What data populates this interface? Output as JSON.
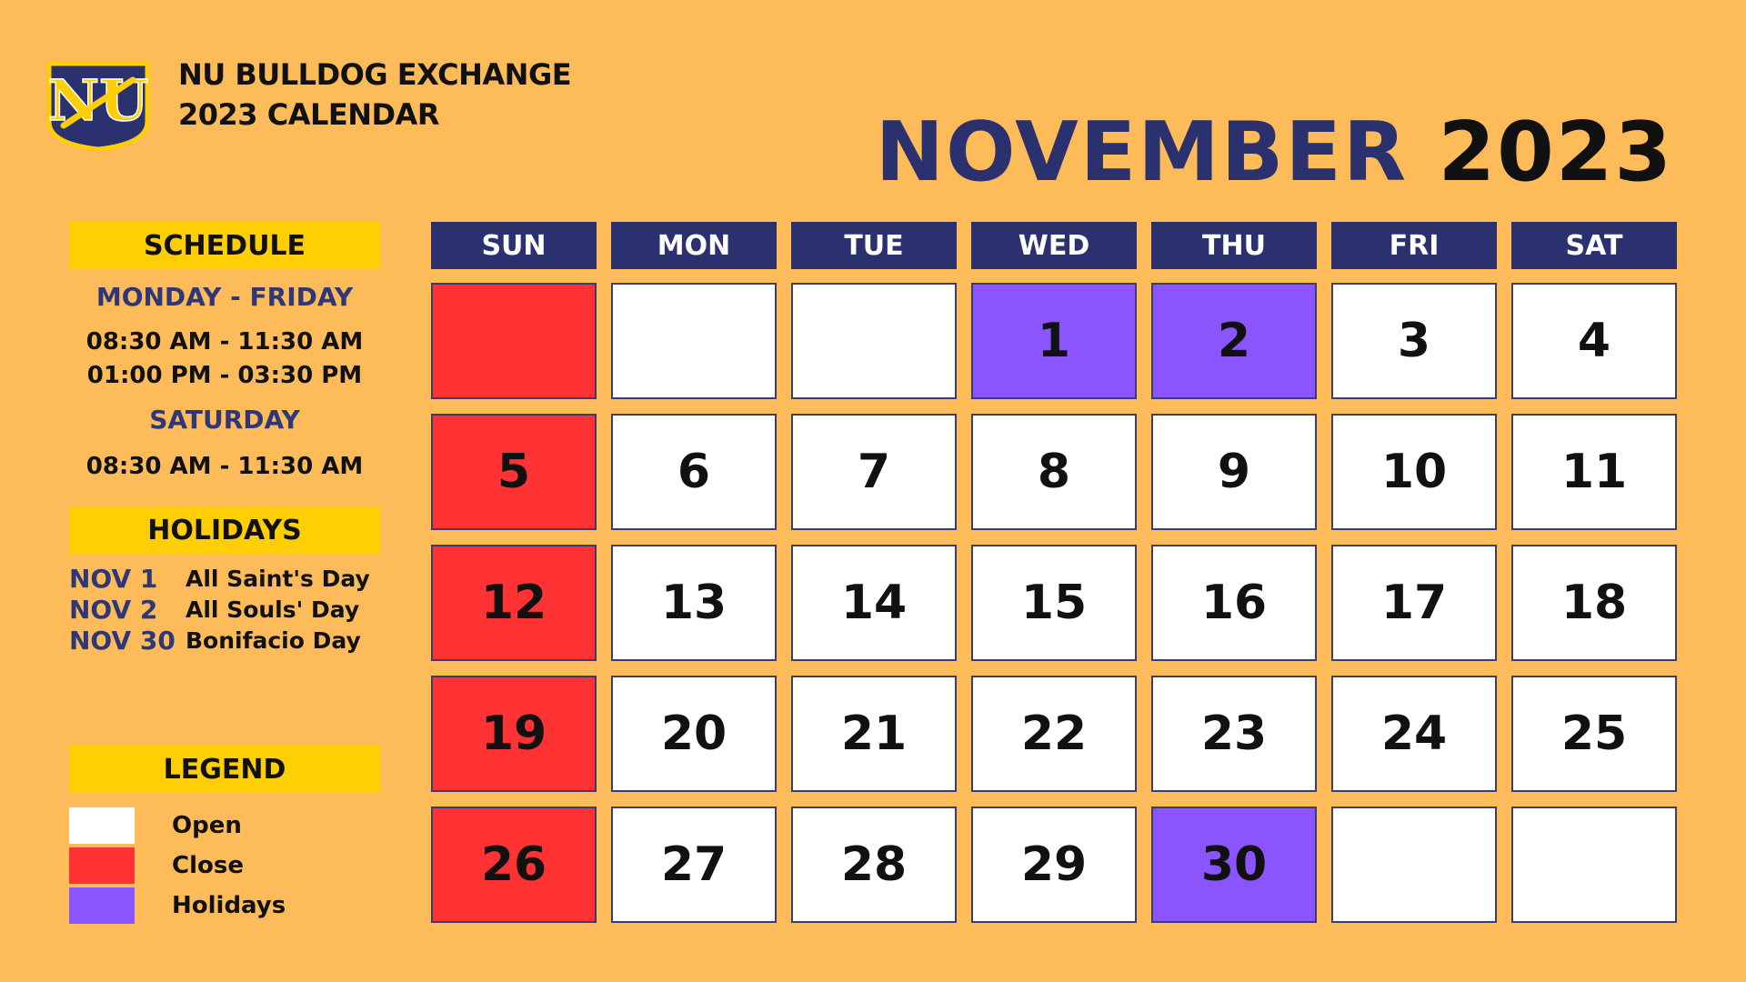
{
  "header": {
    "org_line1": "NU BULLDOG EXCHANGE",
    "org_line2": "2023 CALENDAR",
    "month": "NOVEMBER",
    "year": "2023"
  },
  "logo": {
    "icon": "nu-bulldog-logo-icon",
    "text": "NU"
  },
  "schedule": {
    "title": "SCHEDULE",
    "weekday_label": "MONDAY - FRIDAY",
    "weekday_times": [
      "08:30 AM - 11:30 AM",
      "01:00 PM - 03:30 PM"
    ],
    "saturday_label": "SATURDAY",
    "saturday_times": [
      "08:30 AM - 11:30 AM"
    ]
  },
  "holidays": {
    "title": "HOLIDAYS",
    "items": [
      {
        "date": "NOV 1",
        "name": "All Saint's Day"
      },
      {
        "date": "NOV 2",
        "name": "All Souls' Day"
      },
      {
        "date": "NOV 30",
        "name": "Bonifacio Day"
      }
    ]
  },
  "legend": {
    "title": "LEGEND",
    "items": [
      {
        "label": "Open",
        "color": "#FFFFFF"
      },
      {
        "label": "Close",
        "color": "#FF3334"
      },
      {
        "label": "Holidays",
        "color": "#8A55FF"
      }
    ]
  },
  "colors": {
    "background": "#FDBB59",
    "banner": "#FFCE05",
    "navy": "#2B316E",
    "open": "#FFFFFF",
    "close": "#FF3334",
    "holiday": "#8A55FF"
  },
  "calendar": {
    "weekdays": [
      "SUN",
      "MON",
      "TUE",
      "WED",
      "THU",
      "FRI",
      "SAT"
    ],
    "weeks": [
      [
        {
          "day": "",
          "status": "close"
        },
        {
          "day": "",
          "status": "open"
        },
        {
          "day": "",
          "status": "open"
        },
        {
          "day": "1",
          "status": "holiday"
        },
        {
          "day": "2",
          "status": "holiday"
        },
        {
          "day": "3",
          "status": "open"
        },
        {
          "day": "4",
          "status": "open"
        }
      ],
      [
        {
          "day": "5",
          "status": "close"
        },
        {
          "day": "6",
          "status": "open"
        },
        {
          "day": "7",
          "status": "open"
        },
        {
          "day": "8",
          "status": "open"
        },
        {
          "day": "9",
          "status": "open"
        },
        {
          "day": "10",
          "status": "open"
        },
        {
          "day": "11",
          "status": "open"
        }
      ],
      [
        {
          "day": "12",
          "status": "close"
        },
        {
          "day": "13",
          "status": "open"
        },
        {
          "day": "14",
          "status": "open"
        },
        {
          "day": "15",
          "status": "open"
        },
        {
          "day": "16",
          "status": "open"
        },
        {
          "day": "17",
          "status": "open"
        },
        {
          "day": "18",
          "status": "open"
        }
      ],
      [
        {
          "day": "19",
          "status": "close"
        },
        {
          "day": "20",
          "status": "open"
        },
        {
          "day": "21",
          "status": "open"
        },
        {
          "day": "22",
          "status": "open"
        },
        {
          "day": "23",
          "status": "open"
        },
        {
          "day": "24",
          "status": "open"
        },
        {
          "day": "25",
          "status": "open"
        }
      ],
      [
        {
          "day": "26",
          "status": "close"
        },
        {
          "day": "27",
          "status": "open"
        },
        {
          "day": "28",
          "status": "open"
        },
        {
          "day": "29",
          "status": "open"
        },
        {
          "day": "30",
          "status": "holiday"
        },
        {
          "day": "",
          "status": "open"
        },
        {
          "day": "",
          "status": "open"
        }
      ]
    ]
  }
}
